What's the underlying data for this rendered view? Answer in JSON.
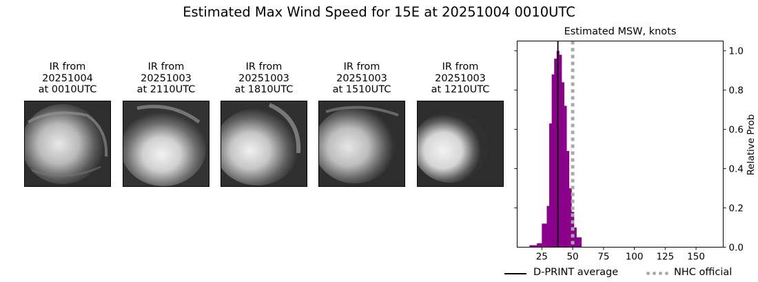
{
  "title": "Estimated Max Wind Speed for 15E at 20251004 0010UTC",
  "ir_panels": [
    {
      "line1": "IR from",
      "line2": "20251004",
      "line3": "at 0010UTC",
      "icon": "satellite-ir-image"
    },
    {
      "line1": "IR from",
      "line2": "20251003",
      "line3": "at 2110UTC",
      "icon": "satellite-ir-image"
    },
    {
      "line1": "IR from",
      "line2": "20251003",
      "line3": "at 1810UTC",
      "icon": "satellite-ir-image"
    },
    {
      "line1": "IR from",
      "line2": "20251003",
      "line3": "at 1510UTC",
      "icon": "satellite-ir-image"
    },
    {
      "line1": "IR from",
      "line2": "20251003",
      "line3": "at 1210UTC",
      "icon": "satellite-ir-image"
    }
  ],
  "chart_data": {
    "type": "bar",
    "title": "Estimated MSW, knots",
    "xlabel": "",
    "ylabel": "Relative Prob",
    "xlim": [
      5,
      172
    ],
    "ylim": [
      0,
      1.05
    ],
    "xticks": [
      25,
      50,
      75,
      100,
      125,
      150
    ],
    "yticks": [
      0.0,
      0.2,
      0.4,
      0.6,
      0.8,
      1.0
    ],
    "ytick_labels": [
      "0.0",
      "0.2",
      "0.4",
      "0.6",
      "0.8",
      "1.0"
    ],
    "y_axis_side": "right",
    "bin_width": 2,
    "bin_starts": [
      15,
      17,
      19,
      21,
      23,
      25,
      27,
      29,
      31,
      33,
      35,
      37,
      39,
      41,
      43,
      45,
      47,
      49,
      51,
      53,
      55
    ],
    "values": [
      0.01,
      0.01,
      0.01,
      0.02,
      0.02,
      0.12,
      0.12,
      0.21,
      0.63,
      0.88,
      0.96,
      1.0,
      0.98,
      0.84,
      0.72,
      0.49,
      0.3,
      0.18,
      0.1,
      0.05,
      0.05
    ],
    "bar_color": "#8B008B",
    "dprint_average": 38,
    "nhc_official": 50,
    "legend": [
      {
        "label": "D-PRINT average",
        "color": "#000000",
        "style": "solid"
      },
      {
        "label": "NHC official",
        "color": "#a9a9a9",
        "style": "dotted"
      }
    ],
    "legend_placement": "bottom"
  }
}
